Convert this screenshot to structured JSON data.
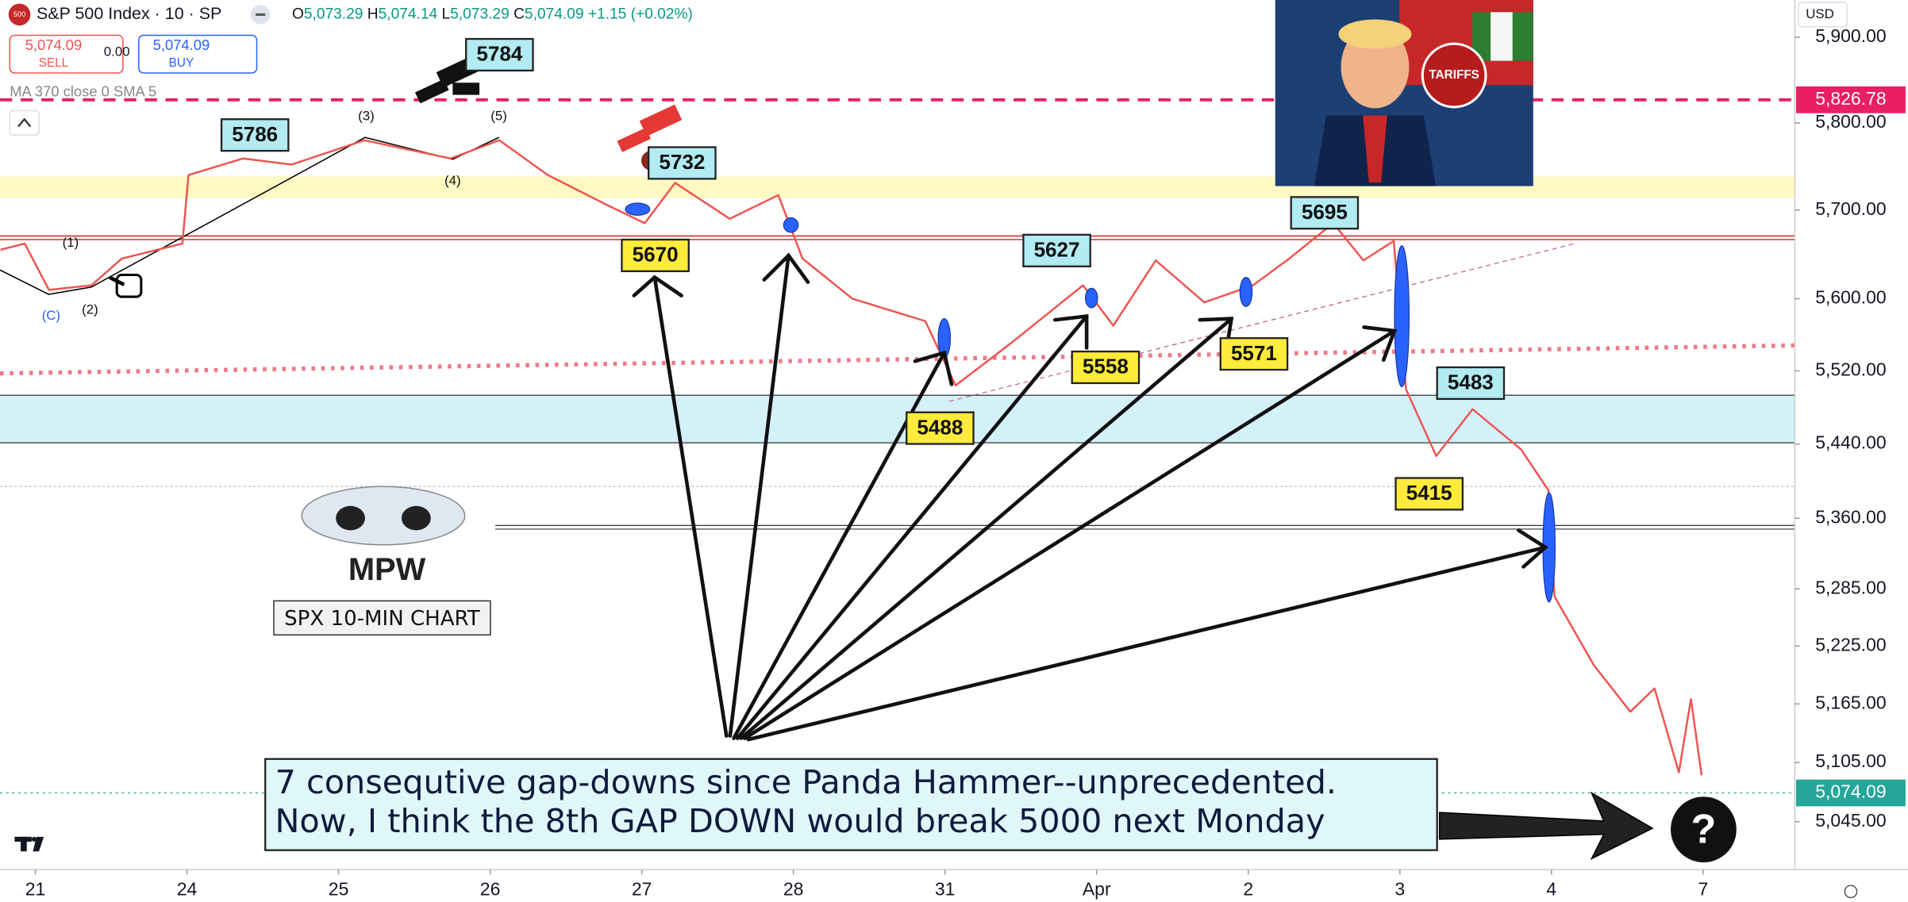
{
  "chart_data": {
    "type": "line",
    "title": "S&P 500 Index · 10 · SP",
    "logo": "500",
    "ohlc": [
      {
        "key": "O",
        "value": "5,073.29"
      },
      {
        "key": "H",
        "value": "5,074.14"
      },
      {
        "key": "L",
        "value": "5,073.29"
      },
      {
        "key": "C",
        "value": "5,074.09"
      }
    ],
    "change": "+1.15 (+0.02%)",
    "trade": {
      "sell_price": "5,074.09",
      "sell": "SELL",
      "spread": "0.00",
      "buy_price": "5,074.09",
      "buy": "BUY"
    },
    "indicator": "MA 370 close 0 SMA 5",
    "currency": "USD",
    "color": "#ef5350",
    "x": [
      -0.23,
      -0.07,
      0.09,
      0.37,
      0.57,
      0.97,
      1.01,
      1.37,
      1.69,
      2.17,
      2.74,
      3.06,
      3.38,
      3.78,
      4.02,
      4.22,
      4.58,
      4.9,
      5.06,
      5.39,
      5.87,
      6.07,
      6.43,
      6.91,
      7.11,
      7.39,
      7.71,
      8.03,
      8.27,
      8.56,
      8.76,
      8.96,
      9.04,
      9.24,
      9.48,
      9.8,
      9.98,
      10.02,
      10.28,
      10.52,
      10.68,
      10.84,
      10.92,
      10.99
    ],
    "values": [
      5655,
      5662,
      5610,
      5615,
      5645,
      5662,
      5740,
      5759,
      5752,
      5780,
      5759,
      5780,
      5740,
      5705,
      5685,
      5731,
      5690,
      5717,
      5645,
      5600,
      5575,
      5504,
      5550,
      5615,
      5570,
      5643,
      5596,
      5615,
      5645,
      5685,
      5643,
      5665,
      5500,
      5427,
      5478,
      5434,
      5390,
      5277,
      5205,
      5157,
      5181,
      5095,
      5170,
      5092
    ],
    "xlim": [
      -0.233,
      11.605
    ],
    "xticks": [
      {
        "value": 0,
        "label": "21"
      },
      {
        "value": 1,
        "label": "24"
      },
      {
        "value": 2,
        "label": "25"
      },
      {
        "value": 3,
        "label": "26"
      },
      {
        "value": 4,
        "label": "27"
      },
      {
        "value": 5,
        "label": "28"
      },
      {
        "value": 6,
        "label": "31"
      },
      {
        "value": 7,
        "label": "Apr"
      },
      {
        "value": 8,
        "label": "2"
      },
      {
        "value": 9,
        "label": "3"
      },
      {
        "value": 10,
        "label": "4"
      },
      {
        "value": 11,
        "label": "7"
      }
    ],
    "ylim": [
      4997,
      5944
    ],
    "log_scale": true,
    "yticks": [
      {
        "value": 5045,
        "label": "5,045.00"
      },
      {
        "value": 5105,
        "label": "5,105.00"
      },
      {
        "value": 5165,
        "label": "5,165.00"
      },
      {
        "value": 5225,
        "label": "5,225.00"
      },
      {
        "value": 5285,
        "label": "5,285.00"
      },
      {
        "value": 5360,
        "label": "5,360.00"
      },
      {
        "value": 5440,
        "label": "5,440.00"
      },
      {
        "value": 5520,
        "label": "5,520.00"
      },
      {
        "value": 5600,
        "label": "5,600.00"
      },
      {
        "value": 5700,
        "label": "5,700.00"
      },
      {
        "value": 5800,
        "label": "5,800.00"
      },
      {
        "value": 5900,
        "label": "5,900.00"
      }
    ],
    "price_lines": [
      {
        "value": 5826.78,
        "label": "5,826.78",
        "color": "#e91e63"
      },
      {
        "value": 5074.09,
        "label": "5,074.09",
        "color": "#26a69a"
      }
    ],
    "annotations": [
      {
        "text": "5786",
        "color": "#b2ebf2"
      },
      {
        "text": "5784",
        "color": "#b2ebf2"
      },
      {
        "text": "5732",
        "color": "#b2ebf2"
      },
      {
        "text": "5670",
        "color": "#ffeb3b"
      },
      {
        "text": "5627",
        "color": "#b2ebf2"
      },
      {
        "text": "5558",
        "color": "#ffeb3b"
      },
      {
        "text": "5571",
        "color": "#ffeb3b"
      },
      {
        "text": "5488",
        "color": "#ffeb3b"
      },
      {
        "text": "5695",
        "color": "#b2ebf2"
      },
      {
        "text": "5483",
        "color": "#b2ebf2"
      },
      {
        "text": "5415",
        "color": "#ffeb3b"
      }
    ],
    "wave_labels": [
      "(1)",
      "(2)",
      "(3)",
      "(4)",
      "(5)",
      "(C)"
    ],
    "brand": "MPW",
    "caption": "SPX 10-MIN CHART",
    "message": [
      "7 consequtive gap-downs since Panda Hammer--unprecedented.",
      "Now, I think the 8th GAP DOWN would break 5000 next Monday"
    ],
    "image_text": "TARIFFS",
    "question": "?"
  }
}
